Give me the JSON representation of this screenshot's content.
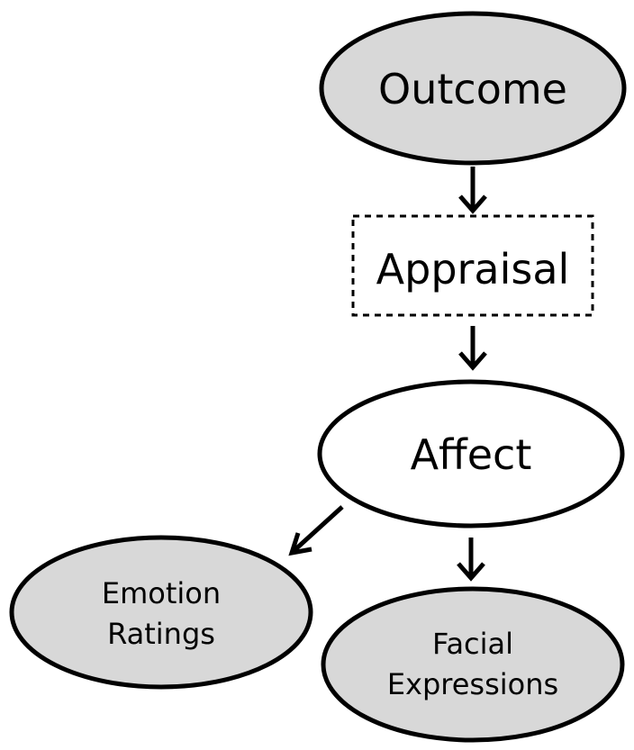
{
  "nodes": {
    "outcome": {
      "label": "Outcome",
      "shape": "ellipse",
      "fill": "#d8d8d8"
    },
    "appraisal": {
      "label": "Appraisal",
      "shape": "dashed-rectangle",
      "fill": "#ffffff"
    },
    "affect": {
      "label": "Affect",
      "shape": "ellipse",
      "fill": "#ffffff"
    },
    "emotion_ratings": {
      "line1": "Emotion",
      "line2": "Ratings",
      "shape": "ellipse",
      "fill": "#d8d8d8"
    },
    "facial_expressions": {
      "line1": "Facial",
      "line2": "Expressions",
      "shape": "ellipse",
      "fill": "#d8d8d8"
    }
  },
  "edges": [
    {
      "from": "outcome",
      "to": "appraisal"
    },
    {
      "from": "appraisal",
      "to": "affect"
    },
    {
      "from": "affect",
      "to": "emotion_ratings"
    },
    {
      "from": "affect",
      "to": "facial_expressions"
    }
  ]
}
